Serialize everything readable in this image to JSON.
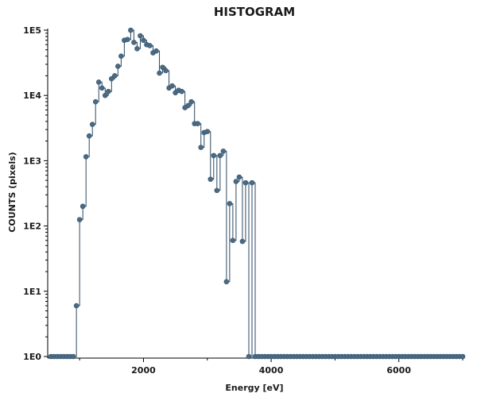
{
  "chart_data": {
    "type": "line",
    "step": true,
    "title": "HISTOGRAM",
    "xlabel": "Energy [eV]",
    "ylabel": "COUNTS (pixels)",
    "xlim": [
      500,
      7000
    ],
    "ylim": [
      1,
      100000
    ],
    "yscale": "log",
    "x_ticks": [
      {
        "value": 2000,
        "label": "2000"
      },
      {
        "value": 4000,
        "label": "4000"
      },
      {
        "value": 6000,
        "label": "6000"
      }
    ],
    "y_ticks": [
      {
        "value": 1,
        "label": "1E0"
      },
      {
        "value": 10,
        "label": "1E1"
      },
      {
        "value": 100,
        "label": "1E2"
      },
      {
        "value": 1000,
        "label": "1E3"
      },
      {
        "value": 10000,
        "label": "1E4"
      },
      {
        "value": 100000,
        "label": "1E5"
      }
    ],
    "grid": false,
    "series": [
      {
        "color": "#4a6a84",
        "x": [
          550,
          600,
          650,
          700,
          750,
          800,
          850,
          900,
          950,
          1000,
          1050,
          1100,
          1150,
          1200,
          1250,
          1300,
          1350,
          1400,
          1450,
          1500,
          1550,
          1600,
          1650,
          1700,
          1750,
          1800,
          1850,
          1900,
          1950,
          2000,
          2050,
          2100,
          2150,
          2200,
          2250,
          2300,
          2350,
          2400,
          2450,
          2500,
          2550,
          2600,
          2650,
          2700,
          2750,
          2800,
          2850,
          2900,
          2950,
          3000,
          3050,
          3100,
          3150,
          3200,
          3250,
          3300,
          3350,
          3400,
          3450,
          3500,
          3550,
          3600,
          3650,
          3700,
          3750,
          3800,
          3850,
          3900,
          3950,
          4000,
          4050,
          4100,
          4150,
          4200,
          4250,
          4300,
          4350,
          4400,
          4450,
          4500,
          4550,
          4600,
          4650,
          4700,
          4750,
          4800,
          4850,
          4900,
          4950,
          5000,
          5050,
          5100,
          5150,
          5200,
          5250,
          5300,
          5350,
          5400,
          5450,
          5500,
          5550,
          5600,
          5650,
          5700,
          5750,
          5800,
          5850,
          5900,
          5950,
          6000,
          6050,
          6100,
          6150,
          6200,
          6250,
          6300,
          6350,
          6400,
          6450,
          6500,
          6550,
          6600,
          6650,
          6700,
          6750,
          6800,
          6850,
          6900,
          6950,
          7000
        ],
        "y": [
          1,
          1,
          1,
          1,
          1,
          1,
          1,
          1,
          6,
          125,
          200,
          1150,
          2400,
          3600,
          8000,
          16000,
          13000,
          10000,
          11500,
          18000,
          20000,
          28000,
          40000,
          70000,
          72000,
          100000,
          65000,
          52000,
          82000,
          70000,
          60000,
          58000,
          45000,
          48000,
          22000,
          27000,
          24000,
          13000,
          14000,
          11000,
          12000,
          11500,
          6500,
          7000,
          8000,
          3700,
          3700,
          1600,
          2700,
          2800,
          520,
          1200,
          350,
          1200,
          1400,
          14,
          220,
          60,
          480,
          560,
          58,
          460,
          1,
          460,
          1,
          1,
          1,
          1,
          1,
          1,
          1,
          1,
          1,
          1,
          1,
          1,
          1,
          1,
          1,
          1,
          1,
          1,
          1,
          1,
          1,
          1,
          1,
          1,
          1,
          1,
          1,
          1,
          1,
          1,
          1,
          1,
          1,
          1,
          1,
          1,
          1,
          1,
          1,
          1,
          1,
          1,
          1,
          1,
          1,
          1,
          1,
          1,
          1,
          1,
          1,
          1,
          1,
          1,
          1,
          1,
          1,
          1,
          1,
          1,
          1,
          1,
          1,
          1,
          1,
          1
        ]
      }
    ]
  }
}
